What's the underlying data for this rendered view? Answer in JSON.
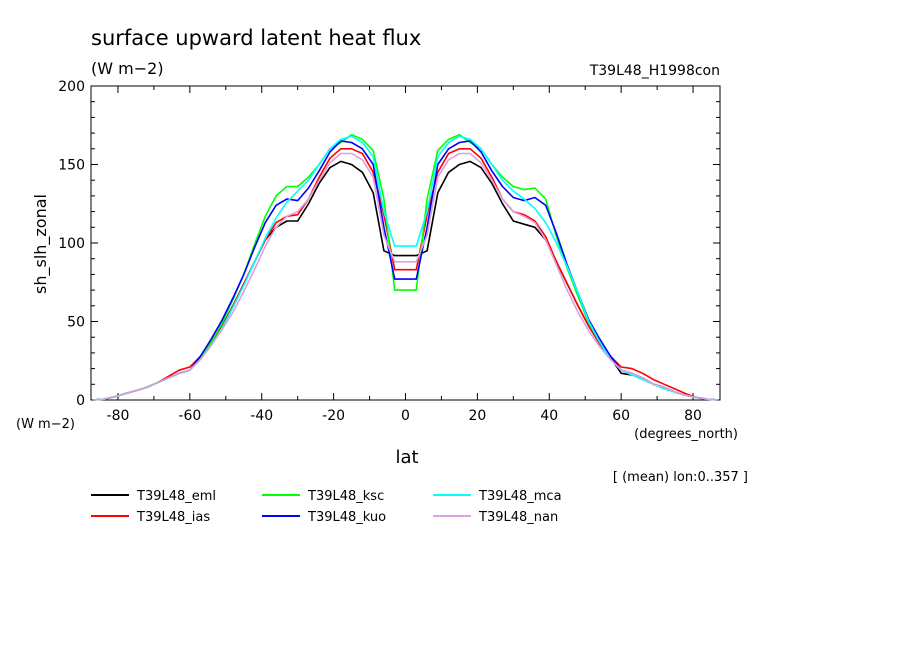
{
  "chart_data": {
    "type": "line",
    "title": "surface upward latent heat flux",
    "subtitle": "(W m−2)",
    "run_label": "T39L48_H1998con",
    "ylabel": "sh_slh_zonal",
    "y_units": "(W m−2)",
    "xlabel": "lat",
    "x_units": "(degrees_north)",
    "averaging_note": "[ (mean) lon:0..357 ]",
    "xlim": [
      -87.5,
      87.5
    ],
    "ylim": [
      0,
      200
    ],
    "x_ticks": [
      "-80",
      "-60",
      "-40",
      "-20",
      "0",
      "20",
      "40",
      "60",
      "80"
    ],
    "y_ticks": [
      "0",
      "50",
      "100",
      "150",
      "200"
    ],
    "grid": false,
    "legend_position": "bottom",
    "x": [
      -87,
      -84,
      -81,
      -78,
      -75,
      -72,
      -69,
      -66,
      -63,
      -60,
      -57,
      -54,
      -51,
      -48,
      -45,
      -42,
      -39,
      -36,
      -33,
      -30,
      -27,
      -24,
      -21,
      -18,
      -15,
      -12,
      -9,
      -6,
      -3,
      0,
      3,
      6,
      9,
      12,
      15,
      18,
      21,
      24,
      27,
      30,
      33,
      36,
      39,
      42,
      45,
      48,
      51,
      54,
      57,
      60,
      63,
      66,
      69,
      72,
      75,
      78,
      81,
      84,
      87
    ],
    "series": [
      {
        "name": "T39L48_eml",
        "color": "#000000",
        "values": [
          0,
          0.5,
          2,
          4,
          6,
          8,
          11,
          14,
          17,
          19,
          27,
          37,
          47,
          60,
          74,
          88,
          102,
          110,
          114,
          114,
          125,
          138,
          148,
          152,
          150,
          145,
          132,
          95,
          92,
          92,
          92,
          95,
          132,
          145,
          150,
          152,
          148,
          138,
          125,
          114,
          112,
          110,
          102,
          88,
          74,
          60,
          47,
          36,
          27,
          17,
          16,
          14,
          10,
          8,
          5,
          3,
          1.5,
          0.5,
          0
        ]
      },
      {
        "name": "T39L48_ias",
        "color": "#ff0000",
        "values": [
          0,
          0.5,
          2,
          4,
          6,
          8,
          11,
          15,
          19,
          21,
          28,
          37,
          47,
          60,
          74,
          88,
          102,
          113,
          117,
          118,
          128,
          142,
          154,
          160,
          160,
          157,
          145,
          118,
          83,
          83,
          83,
          118,
          145,
          157,
          160,
          160,
          154,
          142,
          128,
          120,
          118,
          114,
          104,
          88,
          74,
          60,
          47,
          36,
          28,
          21,
          20,
          17,
          13,
          10,
          7,
          4,
          1.5,
          0.5,
          0
        ]
      },
      {
        "name": "T39L48_ksc",
        "color": "#00ff00",
        "values": [
          0,
          0.5,
          2,
          4,
          6,
          8,
          11,
          14,
          17,
          19,
          27,
          37,
          49,
          64,
          80,
          99,
          117,
          130,
          136,
          136,
          142,
          150,
          160,
          164,
          169,
          166,
          159,
          128,
          70,
          70,
          70,
          128,
          159,
          166,
          169,
          164,
          160,
          150,
          142,
          136,
          134,
          135,
          128,
          104,
          84,
          66,
          49,
          37,
          27,
          19,
          17,
          14,
          10,
          8,
          5,
          3,
          1.5,
          0.5,
          0
        ]
      },
      {
        "name": "T39L48_kuo",
        "color": "#0000ff",
        "values": [
          0,
          0.5,
          2,
          4,
          6,
          8,
          11,
          14,
          17,
          19,
          28,
          39,
          51,
          65,
          80,
          97,
          113,
          124,
          128,
          127,
          135,
          146,
          158,
          165,
          164,
          160,
          150,
          110,
          77,
          77,
          77,
          110,
          150,
          160,
          164,
          165,
          158,
          146,
          136,
          129,
          127,
          129,
          124,
          106,
          86,
          68,
          51,
          39,
          28,
          19,
          17,
          14,
          10,
          8,
          5,
          3,
          1.5,
          0.5,
          0
        ]
      },
      {
        "name": "T39L48_mca",
        "color": "#00ffff",
        "values": [
          0,
          0.5,
          2,
          4,
          6,
          8,
          11,
          14,
          17,
          19,
          26,
          35,
          46,
          59,
          73,
          88,
          103,
          116,
          126,
          133,
          140,
          150,
          160,
          166,
          168,
          164,
          155,
          120,
          98,
          98,
          98,
          120,
          155,
          164,
          168,
          166,
          160,
          150,
          140,
          133,
          128,
          122,
          113,
          100,
          85,
          68,
          50,
          37,
          26,
          19,
          16,
          13,
          10,
          7,
          5,
          3,
          1.5,
          0.5,
          0
        ]
      },
      {
        "name": "T39L48_nan",
        "color": "#dda0dd",
        "values": [
          0,
          0.5,
          2,
          4,
          6,
          8,
          11,
          14,
          17,
          19,
          26,
          35,
          45,
          56,
          69,
          83,
          98,
          110,
          117,
          120,
          128,
          140,
          151,
          157,
          157,
          153,
          142,
          105,
          88,
          88,
          88,
          105,
          142,
          153,
          157,
          157,
          151,
          140,
          128,
          120,
          117,
          113,
          102,
          86,
          70,
          56,
          44,
          34,
          26,
          19,
          17,
          14,
          10,
          8,
          5,
          3,
          1.5,
          0.5,
          0
        ]
      }
    ]
  }
}
